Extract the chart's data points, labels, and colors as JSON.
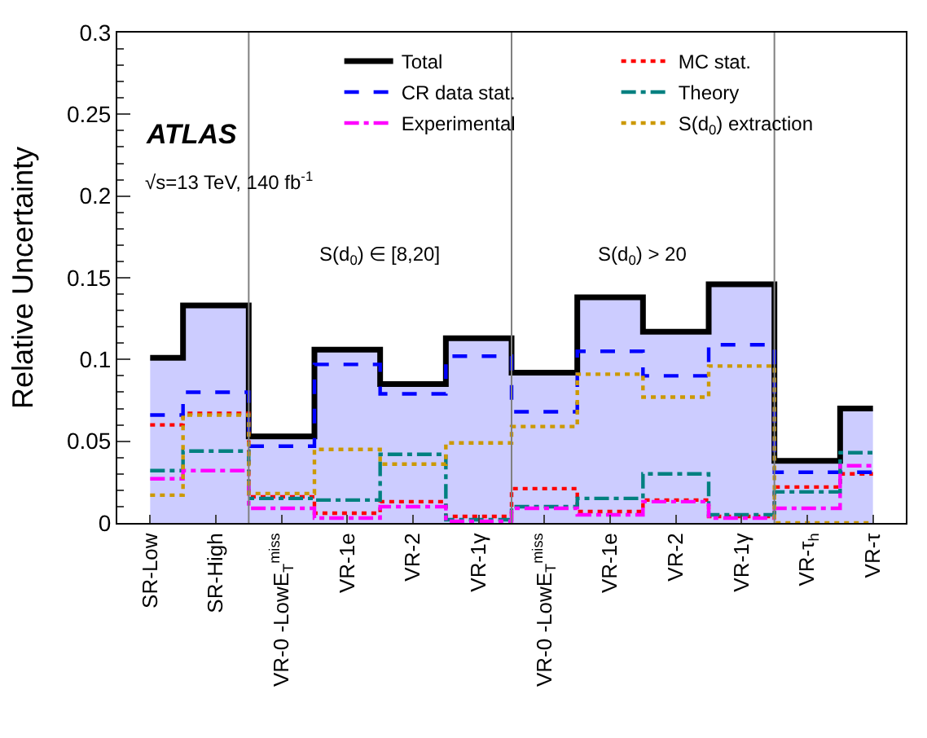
{
  "chart_data": {
    "type": "step",
    "ylabel": "Relative Uncertainty",
    "categories": [
      "SR-Low",
      "SR-High",
      "VR-0 -LowE$_{T}$$^{miss}$",
      "VR-1e",
      "VR-2",
      "VR-1γ",
      "VR-0 -LowE$_{T}$$^{miss}$",
      "VR-1e",
      "VR-2",
      "VR-1γ",
      "VR-τ$_{h}$",
      "VR-τ"
    ],
    "series": [
      {
        "type": "area",
        "color": "#ccccff",
        "values": [
          0.101,
          0.133,
          0.053,
          0.106,
          0.085,
          0.113,
          0.092,
          0.138,
          0.117,
          0.146,
          0.038,
          0.07
        ]
      },
      {
        "name": "Total",
        "color": "#000000",
        "line_style": "solid",
        "values": [
          0.101,
          0.133,
          0.053,
          0.106,
          0.085,
          0.113,
          0.092,
          0.138,
          0.117,
          0.146,
          0.038,
          0.07
        ]
      },
      {
        "name": "MC stat.",
        "color": "#ff0000",
        "line_style": "dotted",
        "values": [
          0.06,
          0.067,
          0.016,
          0.006,
          0.013,
          0.004,
          0.021,
          0.007,
          0.014,
          0.004,
          0.022,
          0.03
        ]
      },
      {
        "name": "CR data stat.",
        "color": "#0000ff",
        "line_style": "dashed",
        "values": [
          0.066,
          0.08,
          0.047,
          0.097,
          0.079,
          0.102,
          0.068,
          0.105,
          0.09,
          0.109,
          0.031,
          0.031
        ]
      },
      {
        "name": "Theory",
        "color": "#008080",
        "line_style": "dashdot",
        "values": [
          0.032,
          0.044,
          0.015,
          0.014,
          0.042,
          0.002,
          0.01,
          0.015,
          0.03,
          0.005,
          0.019,
          0.043
        ]
      },
      {
        "name": "Experimental",
        "color": "#ff00ff",
        "line_style": "dashdot",
        "values": [
          0.027,
          0.032,
          0.009,
          0.003,
          0.01,
          0.001,
          0.009,
          0.005,
          0.013,
          0.003,
          0.009,
          0.035
        ]
      },
      {
        "name": "S(d$_{0}$) extraction",
        "color": "#cc9900",
        "line_style": "dotted",
        "values": [
          0.017,
          0.066,
          0.018,
          0.045,
          0.036,
          0.049,
          0.059,
          0.091,
          0.077,
          0.096,
          0.0,
          0.0
        ]
      }
    ],
    "ylim": [
      0,
      0.3
    ],
    "yticks": [
      0,
      0.05,
      0.1,
      0.15,
      0.2,
      0.25,
      0.3
    ],
    "annotations": [
      "ATLAS",
      "√s=13 TeV, 140 fb$^{-1}$",
      "S(d$_{0}$) ∈ [8,20]",
      "S(d$_{0}$) > 20"
    ],
    "legend": "top right"
  }
}
